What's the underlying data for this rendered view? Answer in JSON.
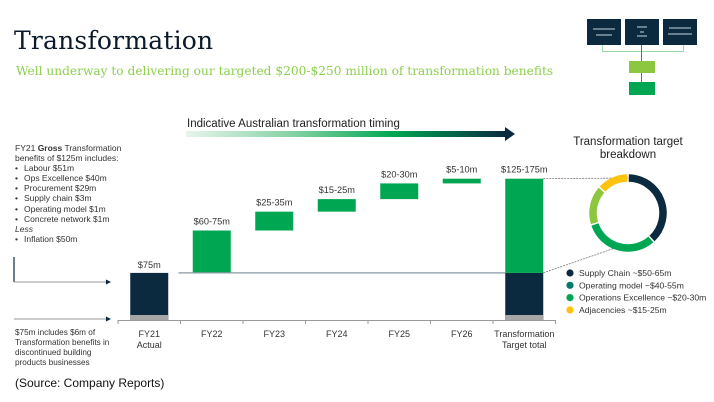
{
  "header": {
    "title": "Transformation",
    "subtitle": "Well underway to delivering our targeted $200-$250 million of transformation benefits"
  },
  "notes": {
    "line1_prefix": "FY21 ",
    "line1_bold": "Gross",
    "line1_suffix": " Transformation",
    "line2": "benefits of $125m includes:",
    "items": [
      "Labour $51m",
      "Ops Excellence $40m",
      "Procurement $29m",
      "Supply chain $3m",
      "Operating model $1m",
      "Concrete network $1m"
    ],
    "less_label": "Less",
    "less_items": [
      "Inflation $50m"
    ]
  },
  "footnote": "$75m includes $6m of Transformation benefits in discontinued building products businesses",
  "source": "(Source: Company Reports)",
  "colors": {
    "navy": "#0b2a40",
    "green": "#00a651",
    "light_green": "#8dc63f",
    "teal": "#00796b",
    "yellow": "#ffc20e",
    "grey": "#a6a6a6",
    "subtitle": "#8ccf4d"
  },
  "chart_data": [
    {
      "type": "bar",
      "subtype": "waterfall",
      "title": "Indicative Australian transformation timing",
      "categories": [
        "FY21\nActual",
        "FY22",
        "FY23",
        "FY24",
        "FY25",
        "FY26",
        "Transformation\nTarget total"
      ],
      "category_lines": [
        [
          "FY21",
          "Actual"
        ],
        [
          "FY22"
        ],
        [
          "FY23"
        ],
        [
          "FY24"
        ],
        [
          "FY25"
        ],
        [
          "FY26"
        ],
        [
          "Transformation",
          "Target total"
        ]
      ],
      "units": "$m",
      "ylim": [
        0,
        250
      ],
      "bars": [
        {
          "category": "FY21",
          "base": 0,
          "low": 75,
          "high": 75,
          "label": "$75m",
          "kind": "actual"
        },
        {
          "category": "FY22",
          "base": 75,
          "low": 60,
          "high": 75,
          "label": "$60-75m",
          "kind": "increment"
        },
        {
          "category": "FY23",
          "base": 142.5,
          "low": 25,
          "high": 35,
          "label": "$25-35m",
          "kind": "increment"
        },
        {
          "category": "FY24",
          "base": 172.5,
          "low": 15,
          "high": 25,
          "label": "$15-25m",
          "kind": "increment"
        },
        {
          "category": "FY25",
          "base": 192.5,
          "low": 20,
          "high": 30,
          "label": "$20-30m",
          "kind": "increment"
        },
        {
          "category": "FY26",
          "base": 217.5,
          "low": 5,
          "high": 10,
          "label": "$5-10m",
          "kind": "increment"
        },
        {
          "category": "Transformation Target total",
          "base": 75,
          "low": 125,
          "high": 175,
          "label": "$125-175m",
          "kind": "total"
        }
      ],
      "baseline_value": 75,
      "grid": false
    },
    {
      "type": "pie",
      "subtype": "donut",
      "title": "Transformation target breakdown",
      "legend_position": "bottom-right",
      "slices": [
        {
          "label": "Supply Chain ~$50-65m",
          "value": 57.5,
          "color": "#0b2a40",
          "legend_color": "#0b2a40"
        },
        {
          "label": "Operating model ~$40-55m",
          "value": 47.5,
          "color": "#00a651",
          "legend_color": "#00796b"
        },
        {
          "label": "Operations Excellence ~$20-30m",
          "value": 25,
          "color": "#8dc63f",
          "legend_color": "#00a651"
        },
        {
          "label": "Adjacencies ~$15-25m",
          "value": 20,
          "color": "#ffc20e",
          "legend_color": "#ffc20e"
        }
      ]
    }
  ]
}
